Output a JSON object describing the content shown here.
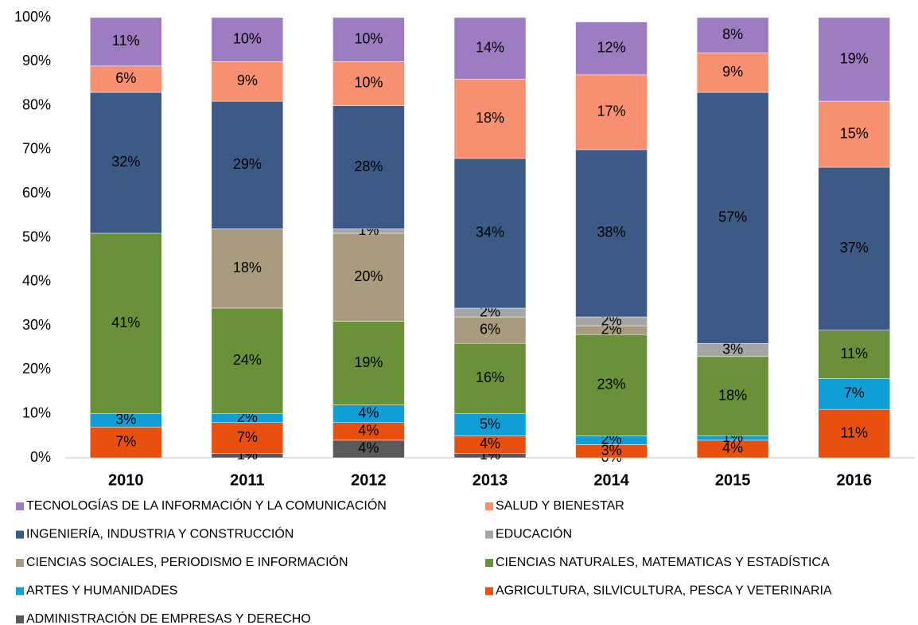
{
  "chart_data": {
    "type": "stacked_bar",
    "categories": [
      "2010",
      "2011",
      "2012",
      "2013",
      "2014",
      "2015",
      "2016"
    ],
    "ylim": [
      0,
      100
    ],
    "yticks": [
      {
        "value": 0,
        "label": "0%"
      },
      {
        "value": 10,
        "label": "10%"
      },
      {
        "value": 20,
        "label": "20%"
      },
      {
        "value": 30,
        "label": "30%"
      },
      {
        "value": 40,
        "label": "40%"
      },
      {
        "value": 50,
        "label": "50%"
      },
      {
        "value": 60,
        "label": "60%"
      },
      {
        "value": 70,
        "label": "70%"
      },
      {
        "value": 80,
        "label": "80%"
      },
      {
        "value": 90,
        "label": "90%"
      },
      {
        "value": 100,
        "label": "100%"
      }
    ],
    "series": [
      {
        "name": "ADMINISTRACIÓN DE EMPRESAS Y DERECHO",
        "color": "#595959",
        "values": [
          null,
          1,
          4,
          1,
          0,
          null,
          null
        ],
        "value_labels": [
          null,
          "1%",
          "4%",
          "1%",
          "0%",
          null,
          null
        ]
      },
      {
        "name": "AGRICULTURA, SILVICULTURA, PESCA Y VETERINARIA",
        "color": "#e8500f",
        "values": [
          7,
          7,
          4,
          4,
          3,
          4,
          11
        ],
        "value_labels": [
          "7%",
          "7%",
          "4%",
          "4%",
          "3%",
          "4%",
          "11%"
        ]
      },
      {
        "name": "ARTES Y HUMANIDADES",
        "color": "#0f9ed5",
        "values": [
          3,
          2,
          4,
          5,
          2,
          1,
          7
        ],
        "value_labels": [
          "3%",
          "2%",
          "4%",
          "5%",
          "2%",
          "1%",
          "7%"
        ]
      },
      {
        "name": "CIENCIAS NATURALES, MATEMATICAS Y ESTADÍSTICA",
        "color": "#6a913a",
        "values": [
          41,
          24,
          19,
          16,
          23,
          18,
          11
        ],
        "value_labels": [
          "41%",
          "24%",
          "19%",
          "16%",
          "23%",
          "18%",
          "11%"
        ]
      },
      {
        "name": "CIENCIAS SOCIALES, PERIODISMO E INFORMACIÓN",
        "color": "#a99a80",
        "values": [
          null,
          18,
          20,
          6,
          2,
          null,
          null
        ],
        "value_labels": [
          null,
          "18%",
          "20%",
          "6%",
          "2%",
          null,
          null
        ]
      },
      {
        "name": "EDUCACIÓN",
        "color": "#a5a5a5",
        "values": [
          null,
          null,
          1,
          2,
          2,
          3,
          null
        ],
        "value_labels": [
          null,
          null,
          "1%",
          "2%",
          "2%",
          "3%",
          null
        ]
      },
      {
        "name": "INGENIERÍA, INDUSTRIA Y CONSTRUCCIÓN",
        "color": "#3c5a85",
        "values": [
          32,
          29,
          28,
          34,
          38,
          57,
          37
        ],
        "value_labels": [
          "32%",
          "29%",
          "28%",
          "34%",
          "38%",
          "57%",
          "37%"
        ]
      },
      {
        "name": "SALUD Y BIENESTAR",
        "color": "#f79070",
        "values": [
          6,
          9,
          10,
          18,
          17,
          9,
          15
        ],
        "value_labels": [
          "6%",
          "9%",
          "10%",
          "18%",
          "17%",
          "9%",
          "15%"
        ]
      },
      {
        "name": "TECNOLOGÍAS DE LA INFORMACIÓN Y LA COMUNICACIÓN",
        "color": "#9e7cc1",
        "values": [
          11,
          10,
          10,
          14,
          12,
          8,
          19
        ],
        "value_labels": [
          "11%",
          "10%",
          "10%",
          "14%",
          "12%",
          "8%",
          "19%"
        ]
      }
    ]
  }
}
